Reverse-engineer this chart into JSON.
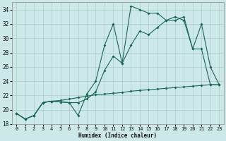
{
  "xlabel": "Humidex (Indice chaleur)",
  "bg_color": "#cce8e8",
  "grid_color": "#aacaca",
  "line_color": "#1a6655",
  "xlim": [
    -0.5,
    23.5
  ],
  "ylim": [
    18,
    35
  ],
  "yticks": [
    18,
    20,
    22,
    24,
    26,
    28,
    30,
    32,
    34
  ],
  "xticks": [
    0,
    1,
    2,
    3,
    4,
    5,
    6,
    7,
    8,
    9,
    10,
    11,
    12,
    13,
    14,
    15,
    16,
    17,
    18,
    19,
    20,
    21,
    22,
    23
  ],
  "series1_x": [
    0,
    1,
    2,
    3,
    4,
    5,
    6,
    7,
    8,
    9,
    10,
    11,
    12,
    13,
    14,
    15,
    16,
    17,
    18,
    19,
    20,
    21,
    22,
    23
  ],
  "series1_y": [
    19.5,
    18.7,
    19.2,
    21.0,
    21.2,
    21.1,
    21.0,
    19.2,
    22.2,
    24.0,
    29.0,
    32.0,
    26.5,
    34.5,
    34.0,
    33.5,
    33.5,
    32.5,
    33.0,
    32.5,
    28.5,
    32.0,
    26.0,
    23.5
  ],
  "series2_x": [
    0,
    1,
    2,
    3,
    4,
    5,
    6,
    7,
    8,
    9,
    10,
    11,
    12,
    13,
    14,
    15,
    16,
    17,
    18,
    19,
    20,
    21,
    22,
    23
  ],
  "series2_y": [
    19.5,
    18.7,
    19.2,
    21.0,
    21.2,
    21.1,
    21.0,
    21.0,
    21.5,
    22.5,
    25.5,
    27.5,
    26.5,
    29.0,
    31.0,
    30.5,
    31.5,
    32.5,
    32.5,
    33.0,
    28.5,
    28.5,
    23.5,
    23.5
  ],
  "series3_x": [
    0,
    1,
    2,
    3,
    4,
    5,
    6,
    7,
    8,
    9,
    10,
    11,
    12,
    13,
    14,
    15,
    16,
    17,
    18,
    19,
    20,
    21,
    22,
    23
  ],
  "series3_y": [
    19.5,
    18.7,
    19.2,
    21.0,
    21.2,
    21.3,
    21.5,
    21.7,
    21.9,
    22.1,
    22.2,
    22.3,
    22.4,
    22.6,
    22.7,
    22.8,
    22.9,
    23.0,
    23.1,
    23.2,
    23.3,
    23.4,
    23.5,
    23.5
  ]
}
